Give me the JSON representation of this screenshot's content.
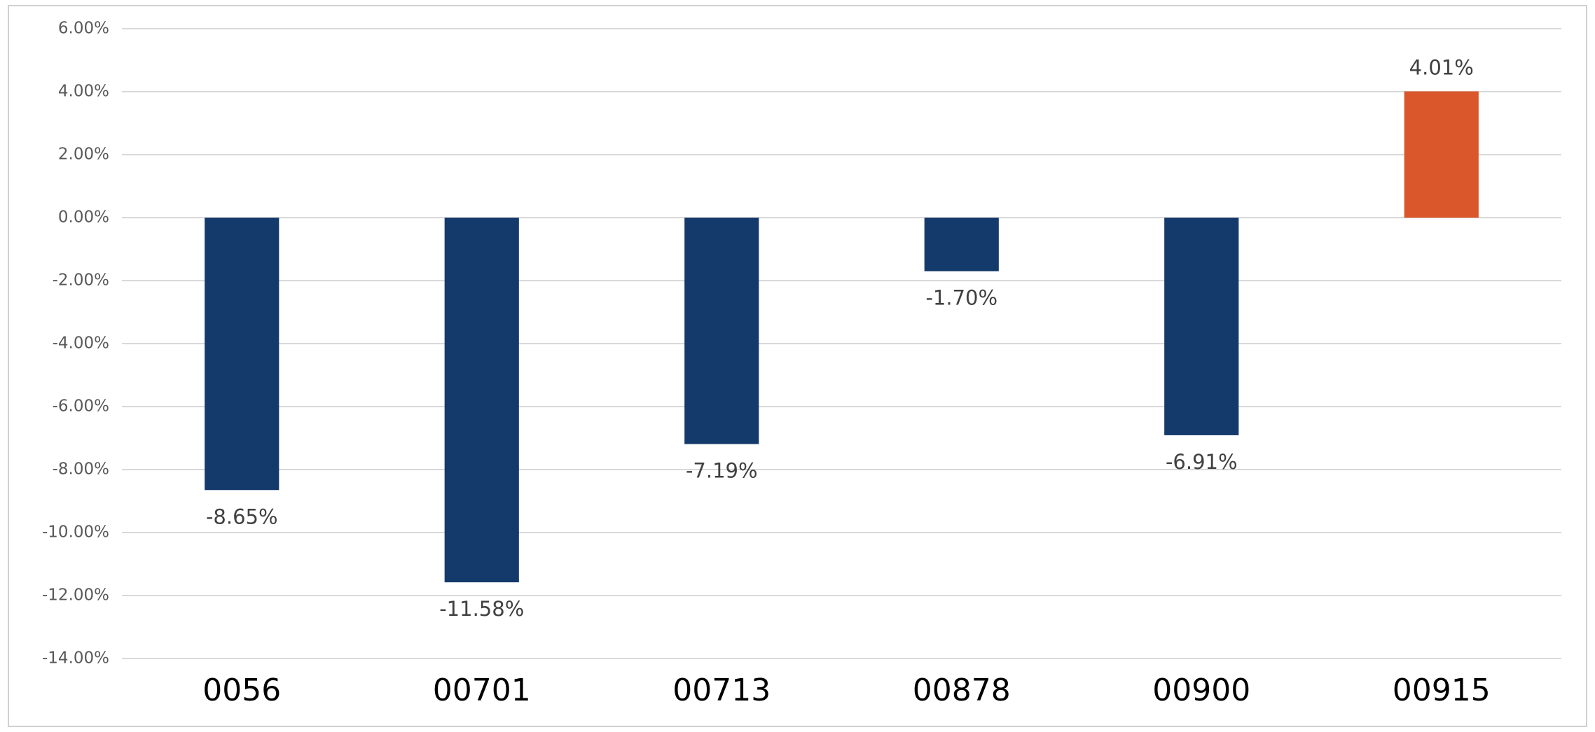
{
  "chart_data": {
    "type": "bar",
    "categories": [
      "0056",
      "00701",
      "00713",
      "00878",
      "00900",
      "00915"
    ],
    "values": [
      -8.65,
      -11.58,
      -7.19,
      -1.7,
      -6.91,
      4.01
    ],
    "value_labels": [
      "-8.65%",
      "-11.58%",
      "-7.19%",
      "-1.70%",
      "-6.91%",
      "4.01%"
    ],
    "colors": [
      "#143a6b",
      "#143a6b",
      "#143a6b",
      "#143a6b",
      "#143a6b",
      "#d9572a"
    ],
    "ylim": [
      -14,
      6
    ],
    "yticks": [
      {
        "value": 6,
        "label": "6.00%"
      },
      {
        "value": 4,
        "label": "4.00%"
      },
      {
        "value": 2,
        "label": "2.00%"
      },
      {
        "value": 0,
        "label": "0.00%"
      },
      {
        "value": -2,
        "label": "-2.00%"
      },
      {
        "value": -4,
        "label": "-4.00%"
      },
      {
        "value": -6,
        "label": "-6.00%"
      },
      {
        "value": -8,
        "label": "-8.00%"
      },
      {
        "value": -10,
        "label": "-10.00%"
      },
      {
        "value": -12,
        "label": "-12.00%"
      },
      {
        "value": -14,
        "label": "-14.00%"
      }
    ],
    "grid": true
  }
}
